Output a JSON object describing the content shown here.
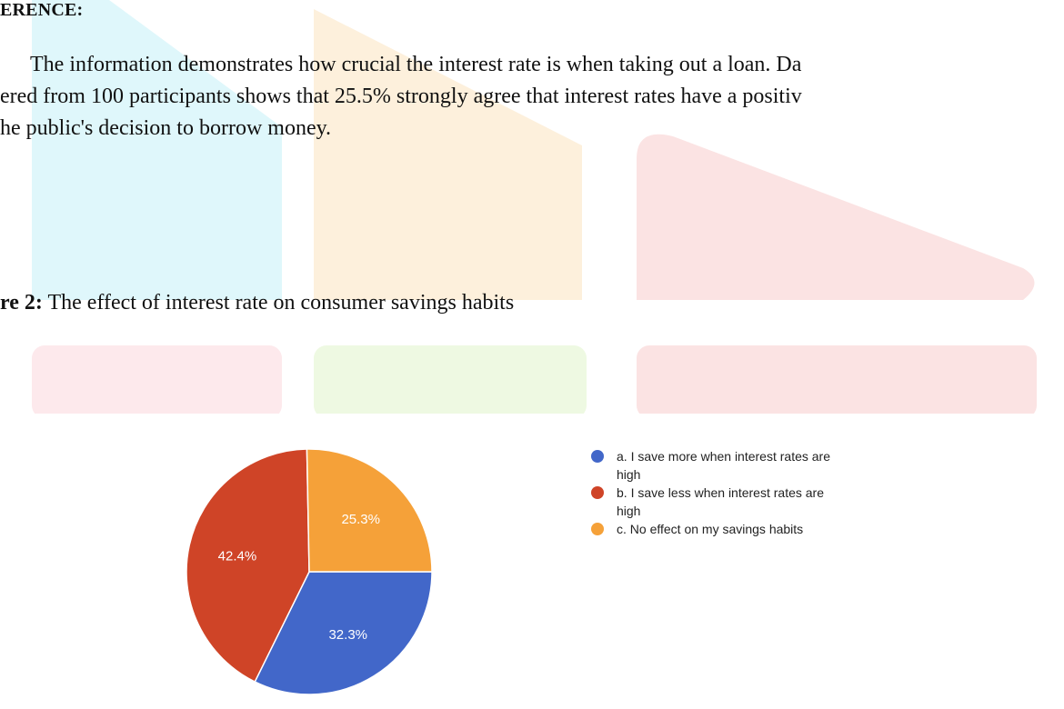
{
  "heading": "ERENCE:",
  "paragraph": {
    "line1": "The information demonstrates how crucial the interest rate is when taking out a loan. Da",
    "line2": "ered from 100 participants shows that 25.5% strongly agree that interest rates have a positiv",
    "line3": "he public's decision to borrow money."
  },
  "caption": {
    "label": "re 2:",
    "text": " The effect of interest rate on consumer savings habits"
  },
  "chart_data": {
    "type": "pie",
    "categories": [
      "a. I save more when interest rates are high",
      "b. I save less when interest rates are high",
      "c. No effect on my savings habits"
    ],
    "values": [
      32.3,
      42.4,
      25.3
    ],
    "labels": [
      "32.3%",
      "42.4%",
      "25.3%"
    ],
    "colors": [
      "#4267c9",
      "#cf4427",
      "#f5a139"
    ],
    "legend_position": "right",
    "start_angle_deg": 0,
    "direction": "counterclockwise"
  },
  "legend": {
    "items": [
      {
        "line1": "a. I save more when interest rates are",
        "line2": "high",
        "color": "#4267c9"
      },
      {
        "line1": "b. I save less when interest rates are",
        "line2": "high",
        "color": "#cf4427"
      },
      {
        "line1": "c. No effect on my savings habits",
        "line2": "",
        "color": "#f5a139"
      }
    ]
  }
}
